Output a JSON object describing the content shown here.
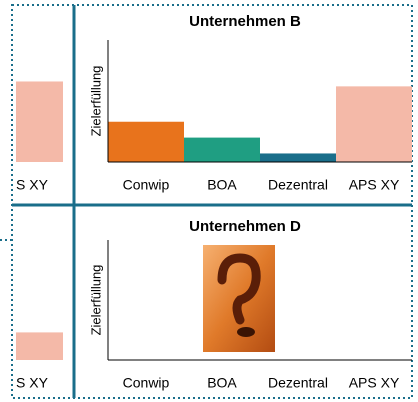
{
  "chart_data": [
    {
      "type": "bar",
      "categories": [
        "S XY"
      ],
      "values": [
        66
      ],
      "colors": [
        "#f4b9a8"
      ],
      "ylim": [
        0,
        100
      ]
    },
    {
      "type": "bar",
      "title": "Unternehmen B",
      "y_label": "Zielerfüllung",
      "categories": [
        "Conwip",
        "BOA",
        "Dezentral",
        "APS XY"
      ],
      "values": [
        33,
        20,
        7,
        62
      ],
      "colors": [
        "#e8731c",
        "#1f9e82",
        "#1a6e8a",
        "#f4b9a8"
      ],
      "ylim": [
        0,
        100
      ]
    },
    {
      "type": "bar",
      "categories": [
        "S XY"
      ],
      "values": [
        23
      ],
      "colors": [
        "#f4b9a8"
      ],
      "ylim": [
        0,
        100
      ]
    },
    {
      "type": "bar",
      "title": "Unternehmen D",
      "y_label": "Zielerfüllung",
      "categories": [
        "Conwip",
        "BOA",
        "Dezentral",
        "APS XY"
      ],
      "values": [
        null,
        null,
        null,
        null
      ],
      "ylim": [
        0,
        100
      ]
    }
  ]
}
